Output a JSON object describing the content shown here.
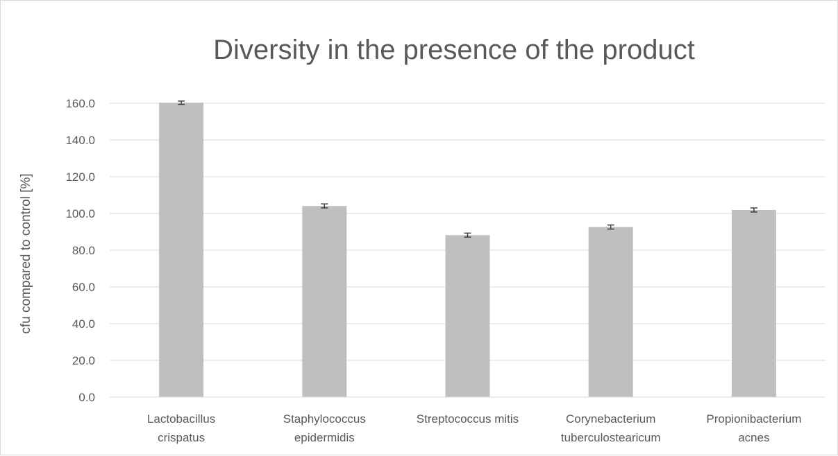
{
  "chart_data": {
    "type": "bar",
    "title": "Diversity in the presence of the product",
    "xlabel": "",
    "ylabel": "cfu compared to control [%]",
    "ylim": [
      0,
      160
    ],
    "yticks": [
      "0.0",
      "20.0",
      "40.0",
      "60.0",
      "80.0",
      "100.0",
      "120.0",
      "140.0",
      "160.0"
    ],
    "ytick_values": [
      0,
      20,
      40,
      60,
      80,
      100,
      120,
      140,
      160
    ],
    "grid": true,
    "legend": "none",
    "categories": [
      [
        "Lactobacillus",
        "crispatus"
      ],
      [
        "Staphylococcus",
        "epidermidis"
      ],
      [
        "Streptococcus mitis"
      ],
      [
        "Corynebacterium",
        "tuberculostearicum"
      ],
      [
        "Propionibacterium",
        "acnes"
      ]
    ],
    "values": [
      160.3,
      104.1,
      88.2,
      92.6,
      101.9
    ],
    "errors": [
      0.9,
      1.1,
      1.1,
      1.1,
      1.1
    ],
    "colors": {
      "bar": "#bfbfbf",
      "error_bar": "#404040",
      "grid": "#d9d9d9",
      "axis": "#d9d9d9",
      "text": "#595959"
    }
  }
}
